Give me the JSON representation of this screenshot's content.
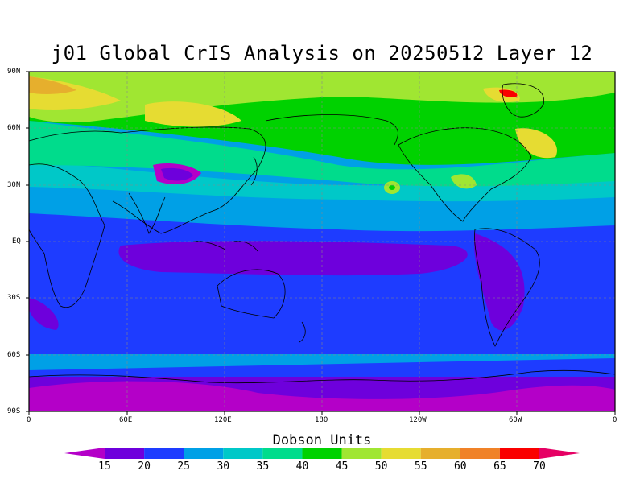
{
  "title": "j01 Global CrIS Analysis on 20250512 Layer 12",
  "lat_labels": [
    "90N",
    "60N",
    "30N",
    "EQ",
    "30S",
    "60S",
    "90S"
  ],
  "lon_labels": [
    "0",
    "60E",
    "120E",
    "180",
    "120W",
    "60W",
    "0"
  ],
  "colorbar": {
    "title": "Dobson Units",
    "levels": [
      15,
      20,
      25,
      30,
      35,
      40,
      45,
      50,
      55,
      60,
      65,
      70
    ],
    "colors": [
      "#b400c8",
      "#6e00dc",
      "#1e3cff",
      "#00a0e6",
      "#00c8c8",
      "#00dc8c",
      "#00d200",
      "#a0e632",
      "#e6dc32",
      "#e6af2d",
      "#f08228",
      "#fa0000",
      "#e60064"
    ]
  },
  "colors": {
    "low_band": "#6e00dc",
    "tropics": "#1e3cff",
    "subtropics": "#00a0e6",
    "midlat": "#00dc8c",
    "highlat": "#00d200",
    "polar": "#a0e632",
    "max": "#e6dc32"
  }
}
